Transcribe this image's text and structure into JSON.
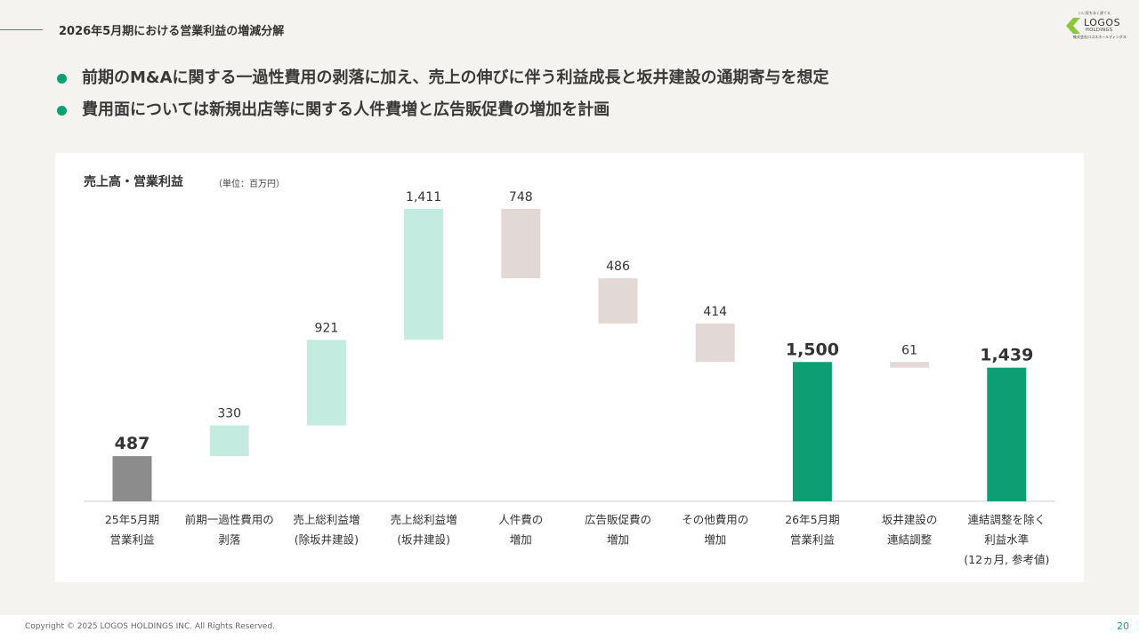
{
  "header": {
    "title": "2026年5月期における営業利益の増減分解"
  },
  "logo": {
    "tagline": "いい家を永く建てる",
    "name": "LOGOS",
    "sub": "HOLDINGS",
    "jp_name": "株式会社ロゴスホールディングス"
  },
  "bullets": [
    "前期のM&Aに関する一過性費用の剥落に加え、売上の伸びに伴う利益成長と坂井建設の通期寄与を想定",
    "費用面については新規出店等に関する人件費増と広告販促費の増加を計画"
  ],
  "panel": {
    "title": "売上高・営業利益",
    "unit": "（単位：百万円）"
  },
  "chart_data": {
    "type": "bar",
    "subtype": "waterfall",
    "categories": [
      [
        "25年5月期",
        "営業利益"
      ],
      [
        "前期一過性費用の",
        "剥落"
      ],
      [
        "売上総利益増",
        "(除坂井建設)"
      ],
      [
        "売上総利益増",
        "(坂井建設)"
      ],
      [
        "人件費の",
        "増加"
      ],
      [
        "広告販促費の",
        "増加"
      ],
      [
        "その他費用の",
        "増加"
      ],
      [
        "26年5月期",
        "営業利益"
      ],
      [
        "坂井建設の",
        "連結調整"
      ],
      [
        "連結調整を除く",
        "利益水準",
        "(12ヵ月, 参考値)"
      ]
    ],
    "steps": [
      {
        "kind": "total",
        "value": 487,
        "label": "487"
      },
      {
        "kind": "increase",
        "value": 330,
        "label": "330"
      },
      {
        "kind": "increase",
        "value": 921,
        "label": "921"
      },
      {
        "kind": "increase",
        "value": 1411,
        "label": "1,411"
      },
      {
        "kind": "decrease",
        "value": 748,
        "label": "748"
      },
      {
        "kind": "decrease",
        "value": 486,
        "label": "486"
      },
      {
        "kind": "decrease",
        "value": 414,
        "label": "414"
      },
      {
        "kind": "total",
        "value": 1500,
        "label": "1,500"
      },
      {
        "kind": "decrease",
        "value": 61,
        "label": "61"
      },
      {
        "kind": "total",
        "value": 1439,
        "label": "1,439"
      }
    ],
    "ylim": [
      0,
      3150
    ],
    "grid": false,
    "colors": {
      "base_total": "#8c8c8c",
      "total": "#0e9e74",
      "increase": "#c4ebdf",
      "decrease": "#e2d8d6",
      "axis": "#cfcfcf"
    }
  },
  "footer": {
    "copyright": "Copyright © 2025 LOGOS HOLDINGS INC. All Rights Reserved.",
    "page": "20"
  }
}
